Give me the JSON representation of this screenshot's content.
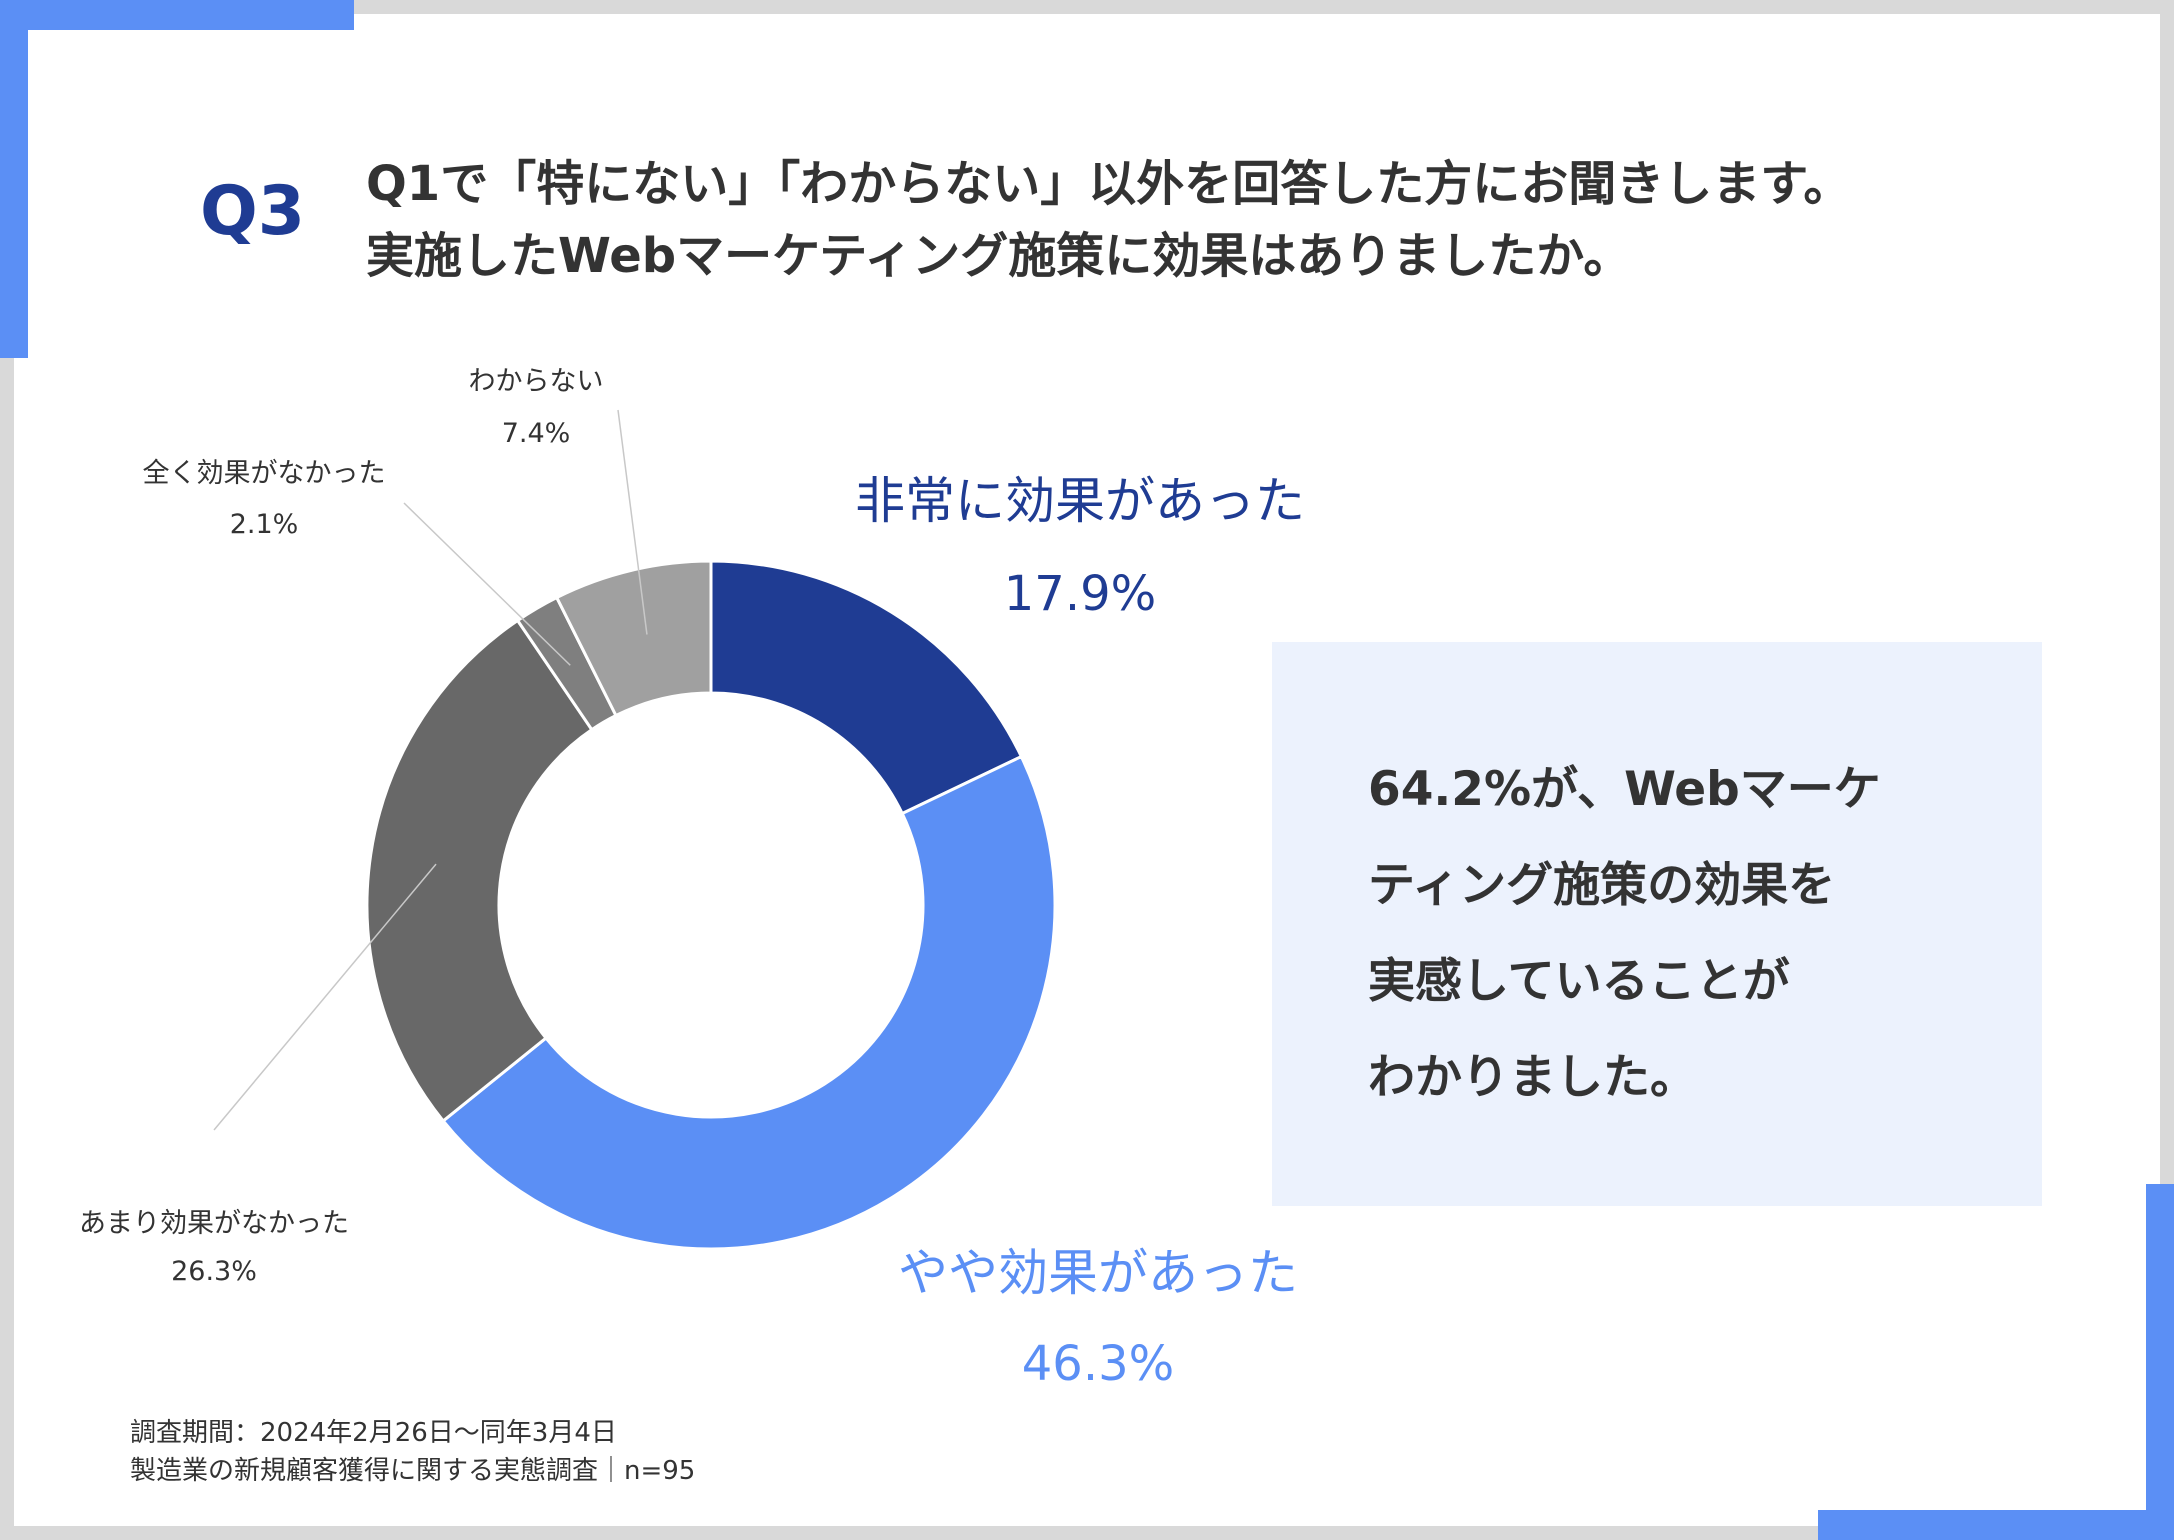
{
  "header": {
    "question_label": "Q3",
    "title_line1": "Q1で「特にない」「わからない」以外を回答した方にお聞きします。",
    "title_line2": "実施したWebマーケティング施策に効果はありましたか。"
  },
  "callout": {
    "lines": [
      "64.2%が、Webマーケ",
      "ティング施策の効果を",
      "実感していることが",
      "わかりました。"
    ]
  },
  "footnote": {
    "line1": "調査期間：2024年2月26日～同年3月4日",
    "line2": "製造業の新規顧客獲得に関する実態調査｜n=95"
  },
  "colors": {
    "accent": "#5b8ff5",
    "navy": "#1f3c93",
    "callout_bg": "#ecf2fd"
  },
  "chart_data": {
    "type": "pie",
    "donut": true,
    "slices": [
      {
        "label": "非常に効果があった",
        "value": 17.9,
        "value_label": "17.9%",
        "color": "#1f3c93",
        "label_color": "#1f3c93"
      },
      {
        "label": "やや効果があった",
        "value": 46.3,
        "value_label": "46.3%",
        "color": "#5b8ff5",
        "label_color": "#5b8ff5"
      },
      {
        "label": "あまり効果がなかった",
        "value": 26.3,
        "value_label": "26.3%",
        "color": "#686868",
        "label_color": "#333333"
      },
      {
        "label": "全く効果がなかった",
        "value": 2.1,
        "value_label": "2.1%",
        "color": "#7f7f7f",
        "label_color": "#333333"
      },
      {
        "label": "わからない",
        "value": 7.4,
        "value_label": "7.4%",
        "color": "#a0a0a0",
        "label_color": "#333333"
      }
    ]
  }
}
